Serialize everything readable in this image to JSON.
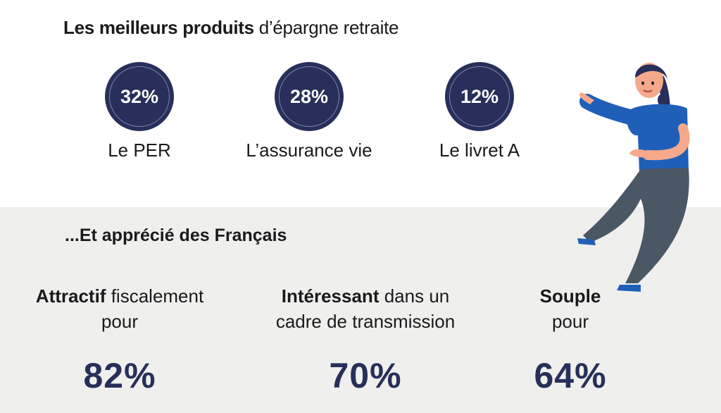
{
  "header": {
    "title_bold": "Les meilleurs produits",
    "title_rest": "d’épargne retraite"
  },
  "products": [
    {
      "value": "32%",
      "label": "Le PER"
    },
    {
      "value": "28%",
      "label": "L’assurance vie"
    },
    {
      "value": "12%",
      "label": "Le livret A"
    }
  ],
  "section2": {
    "subtitle": "...Et apprécié des Français"
  },
  "stats": [
    {
      "bold": "Attractif",
      "rest": "fiscalement",
      "line2": "pour",
      "value": "82%"
    },
    {
      "bold": "Intéressant",
      "rest": "dans un",
      "line2": "cadre de transmission",
      "value": "70%"
    },
    {
      "bold": "Souple",
      "rest": "",
      "line2": "pour",
      "value": "64%"
    }
  ],
  "colors": {
    "navy": "#272f5a",
    "panel": "#efefed",
    "shirt": "#1f5fb8",
    "pants": "#4a5865"
  },
  "illustration": {
    "icon": "woman-pointing-illustration"
  }
}
